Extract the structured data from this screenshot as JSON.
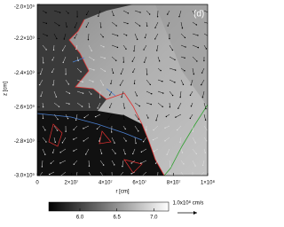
{
  "chart_data": {
    "type": "image",
    "panel_label": "(d)",
    "xlabel": "r [cm]",
    "ylabel": "z [cm]",
    "xlim": [
      0,
      100000000
    ],
    "ylim": [
      -3000000000,
      -2000000000
    ],
    "xticks": [
      {
        "value": 0,
        "label": "0"
      },
      {
        "value": 20000000,
        "label": "2×10⁷"
      },
      {
        "value": 40000000,
        "label": "4×10⁷"
      },
      {
        "value": 60000000,
        "label": "6×10⁷"
      },
      {
        "value": 80000000,
        "label": "8×10⁷"
      },
      {
        "value": 100000000,
        "label": "1×10⁸"
      }
    ],
    "yticks": [
      {
        "value": -2000000000,
        "label": "-2.0×10⁹"
      },
      {
        "value": -2200000000,
        "label": "-2.2×10⁹"
      },
      {
        "value": -2400000000,
        "label": "-2.4×10⁹"
      },
      {
        "value": -2600000000,
        "label": "-2.6×10⁹"
      },
      {
        "value": -2800000000,
        "label": "-2.8×10⁹"
      },
      {
        "value": -3000000000,
        "label": "-3.0×10⁹"
      }
    ],
    "colorbar": {
      "lim": [
        5.58,
        7.2
      ],
      "ticks": [
        {
          "value": 6,
          "label": "6.0"
        },
        6.5,
        {
          "value": 7,
          "label": "7.0"
        }
      ]
    },
    "reference_arrow_label": "1.0x10⁸ cm/s"
  }
}
